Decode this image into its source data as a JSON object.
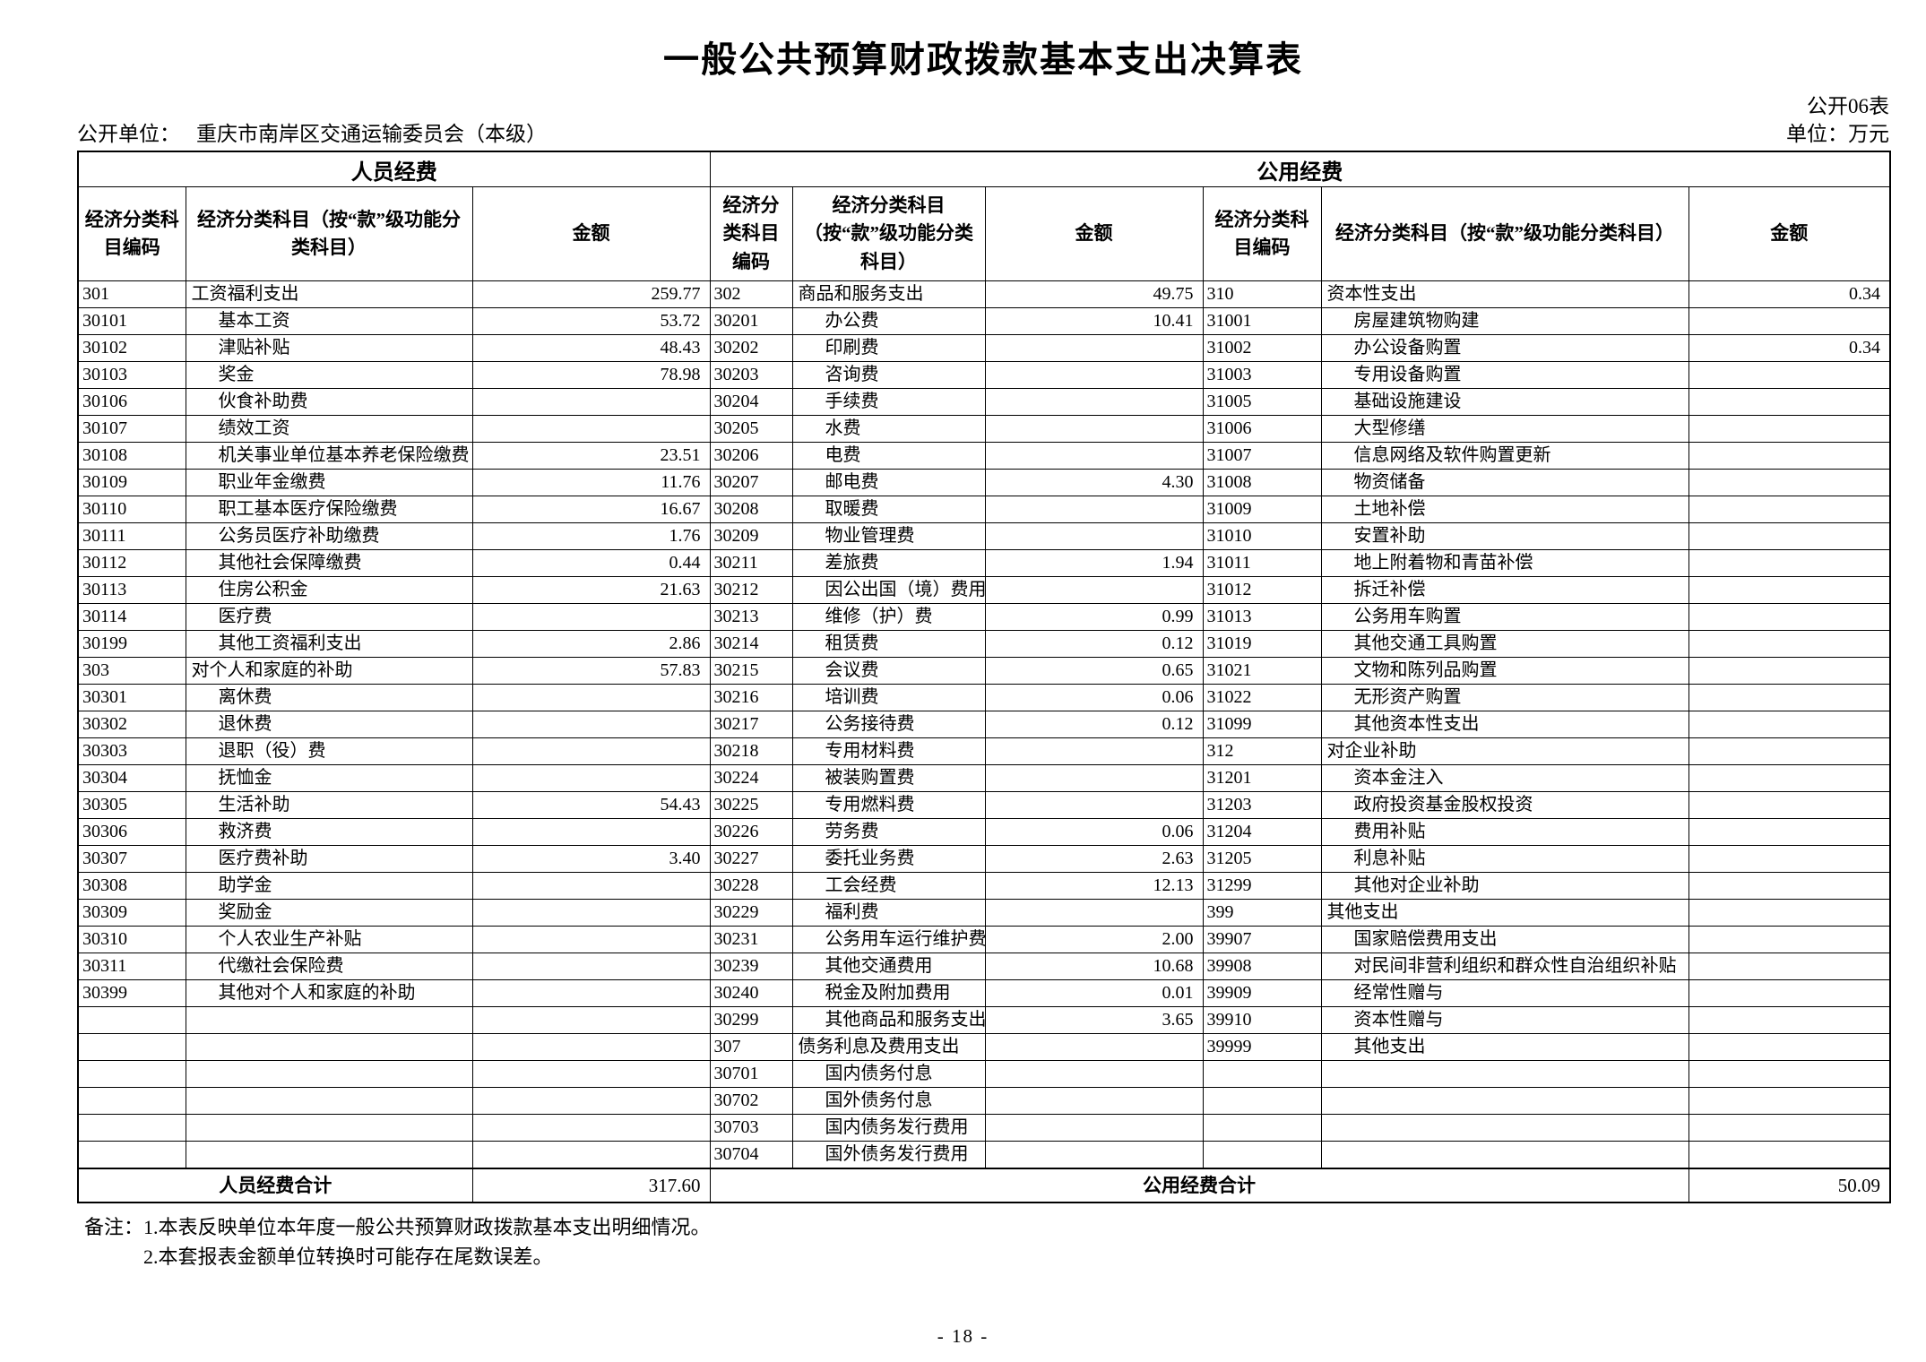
{
  "page": {
    "title": "一般公共预算财政拨款基本支出决算表",
    "form_code": "公开06表",
    "disclosing_unit_label": "公开单位：",
    "disclosing_unit": "重庆市南岸区交通运输委员会（本级）",
    "currency_unit": "单位：万元",
    "notes_label": "备注：",
    "notes": [
      "1.本表反映单位本年度一般公共预算财政拨款基本支出明细情况。",
      "2.本套报表金额单位转换时可能存在尾数误差。"
    ],
    "page_number": "- 18 -"
  },
  "table": {
    "section_headers": [
      {
        "label": "人员经费"
      },
      {
        "label": "公用经费"
      }
    ],
    "column_headers": [
      "经济分类科目编码",
      "经济分类科目（按“款”级功能分类科目）",
      "金额",
      "经济分类科目编码",
      "经济分类科目（按“款”级功能分类科目）",
      "金额",
      "经济分类科目编码",
      "经济分类科目（按“款”级功能分类科目）",
      "金额"
    ],
    "rows": [
      {
        "l": [
          "301",
          "工资福利支出",
          "259.77",
          0
        ],
        "m": [
          "302",
          "商品和服务支出",
          "49.75",
          0
        ],
        "r": [
          "310",
          "资本性支出",
          "0.34",
          0
        ]
      },
      {
        "l": [
          "30101",
          "基本工资",
          "53.72",
          1
        ],
        "m": [
          "30201",
          "办公费",
          "10.41",
          1
        ],
        "r": [
          "31001",
          "房屋建筑物购建",
          "",
          1
        ]
      },
      {
        "l": [
          "30102",
          "津贴补贴",
          "48.43",
          1
        ],
        "m": [
          "30202",
          "印刷费",
          "",
          1
        ],
        "r": [
          "31002",
          "办公设备购置",
          "0.34",
          1
        ]
      },
      {
        "l": [
          "30103",
          "奖金",
          "78.98",
          1
        ],
        "m": [
          "30203",
          "咨询费",
          "",
          1
        ],
        "r": [
          "31003",
          "专用设备购置",
          "",
          1
        ]
      },
      {
        "l": [
          "30106",
          "伙食补助费",
          "",
          1
        ],
        "m": [
          "30204",
          "手续费",
          "",
          1
        ],
        "r": [
          "31005",
          "基础设施建设",
          "",
          1
        ]
      },
      {
        "l": [
          "30107",
          "绩效工资",
          "",
          1
        ],
        "m": [
          "30205",
          "水费",
          "",
          1
        ],
        "r": [
          "31006",
          "大型修缮",
          "",
          1
        ]
      },
      {
        "l": [
          "30108",
          "机关事业单位基本养老保险缴费",
          "23.51",
          1
        ],
        "m": [
          "30206",
          "电费",
          "",
          1
        ],
        "r": [
          "31007",
          "信息网络及软件购置更新",
          "",
          1
        ]
      },
      {
        "l": [
          "30109",
          "职业年金缴费",
          "11.76",
          1
        ],
        "m": [
          "30207",
          "邮电费",
          "4.30",
          1
        ],
        "r": [
          "31008",
          "物资储备",
          "",
          1
        ]
      },
      {
        "l": [
          "30110",
          "职工基本医疗保险缴费",
          "16.67",
          1
        ],
        "m": [
          "30208",
          "取暖费",
          "",
          1
        ],
        "r": [
          "31009",
          "土地补偿",
          "",
          1
        ]
      },
      {
        "l": [
          "30111",
          "公务员医疗补助缴费",
          "1.76",
          1
        ],
        "m": [
          "30209",
          "物业管理费",
          "",
          1
        ],
        "r": [
          "31010",
          "安置补助",
          "",
          1
        ]
      },
      {
        "l": [
          "30112",
          "其他社会保障缴费",
          "0.44",
          1
        ],
        "m": [
          "30211",
          "差旅费",
          "1.94",
          1
        ],
        "r": [
          "31011",
          "地上附着物和青苗补偿",
          "",
          1
        ]
      },
      {
        "l": [
          "30113",
          "住房公积金",
          "21.63",
          1
        ],
        "m": [
          "30212",
          "因公出国（境）费用",
          "",
          1
        ],
        "r": [
          "31012",
          "拆迁补偿",
          "",
          1
        ]
      },
      {
        "l": [
          "30114",
          "医疗费",
          "",
          1
        ],
        "m": [
          "30213",
          "维修（护）费",
          "0.99",
          1
        ],
        "r": [
          "31013",
          "公务用车购置",
          "",
          1
        ]
      },
      {
        "l": [
          "30199",
          "其他工资福利支出",
          "2.86",
          1
        ],
        "m": [
          "30214",
          "租赁费",
          "0.12",
          1
        ],
        "r": [
          "31019",
          "其他交通工具购置",
          "",
          1
        ]
      },
      {
        "l": [
          "303",
          "对个人和家庭的补助",
          "57.83",
          0
        ],
        "m": [
          "30215",
          "会议费",
          "0.65",
          1
        ],
        "r": [
          "31021",
          "文物和陈列品购置",
          "",
          1
        ]
      },
      {
        "l": [
          "30301",
          "离休费",
          "",
          1
        ],
        "m": [
          "30216",
          "培训费",
          "0.06",
          1
        ],
        "r": [
          "31022",
          "无形资产购置",
          "",
          1
        ]
      },
      {
        "l": [
          "30302",
          "退休费",
          "",
          1
        ],
        "m": [
          "30217",
          "公务接待费",
          "0.12",
          1
        ],
        "r": [
          "31099",
          "其他资本性支出",
          "",
          1
        ]
      },
      {
        "l": [
          "30303",
          "退职（役）费",
          "",
          1
        ],
        "m": [
          "30218",
          "专用材料费",
          "",
          1
        ],
        "r": [
          "312",
          "对企业补助",
          "",
          0
        ]
      },
      {
        "l": [
          "30304",
          "抚恤金",
          "",
          1
        ],
        "m": [
          "30224",
          "被装购置费",
          "",
          1
        ],
        "r": [
          "31201",
          "资本金注入",
          "",
          1
        ]
      },
      {
        "l": [
          "30305",
          "生活补助",
          "54.43",
          1
        ],
        "m": [
          "30225",
          "专用燃料费",
          "",
          1
        ],
        "r": [
          "31203",
          "政府投资基金股权投资",
          "",
          1
        ]
      },
      {
        "l": [
          "30306",
          "救济费",
          "",
          1
        ],
        "m": [
          "30226",
          "劳务费",
          "0.06",
          1
        ],
        "r": [
          "31204",
          "费用补贴",
          "",
          1
        ]
      },
      {
        "l": [
          "30307",
          "医疗费补助",
          "3.40",
          1
        ],
        "m": [
          "30227",
          "委托业务费",
          "2.63",
          1
        ],
        "r": [
          "31205",
          "利息补贴",
          "",
          1
        ]
      },
      {
        "l": [
          "30308",
          "助学金",
          "",
          1
        ],
        "m": [
          "30228",
          "工会经费",
          "12.13",
          1
        ],
        "r": [
          "31299",
          "其他对企业补助",
          "",
          1
        ]
      },
      {
        "l": [
          "30309",
          "奖励金",
          "",
          1
        ],
        "m": [
          "30229",
          "福利费",
          "",
          1
        ],
        "r": [
          "399",
          "其他支出",
          "",
          0
        ]
      },
      {
        "l": [
          "30310",
          "个人农业生产补贴",
          "",
          1
        ],
        "m": [
          "30231",
          "公务用车运行维护费",
          "2.00",
          1
        ],
        "r": [
          "39907",
          "国家赔偿费用支出",
          "",
          1
        ]
      },
      {
        "l": [
          "30311",
          "代缴社会保险费",
          "",
          1
        ],
        "m": [
          "30239",
          "其他交通费用",
          "10.68",
          1
        ],
        "r": [
          "39908",
          "对民间非营利组织和群众性自治组织补贴",
          "",
          1
        ]
      },
      {
        "l": [
          "30399",
          "其他对个人和家庭的补助",
          "",
          1
        ],
        "m": [
          "30240",
          "税金及附加费用",
          "0.01",
          1
        ],
        "r": [
          "39909",
          "经常性赠与",
          "",
          1
        ]
      },
      {
        "l": null,
        "m": [
          "30299",
          "其他商品和服务支出",
          "3.65",
          1
        ],
        "r": [
          "39910",
          "资本性赠与",
          "",
          1
        ]
      },
      {
        "l": null,
        "m": [
          "307",
          "债务利息及费用支出",
          "",
          0
        ],
        "r": [
          "39999",
          "其他支出",
          "",
          1
        ]
      },
      {
        "l": null,
        "m": [
          "30701",
          "国内债务付息",
          "",
          1
        ],
        "r": null
      },
      {
        "l": null,
        "m": [
          "30702",
          "国外债务付息",
          "",
          1
        ],
        "r": null
      },
      {
        "l": null,
        "m": [
          "30703",
          "国内债务发行费用",
          "",
          1
        ],
        "r": null
      },
      {
        "l": null,
        "m": [
          "30704",
          "国外债务发行费用",
          "",
          1
        ],
        "r": null
      }
    ],
    "totals": {
      "left_label": "人员经费合计",
      "left_amount": "317.60",
      "right_label": "公用经费合计",
      "right_amount": "50.09"
    }
  }
}
